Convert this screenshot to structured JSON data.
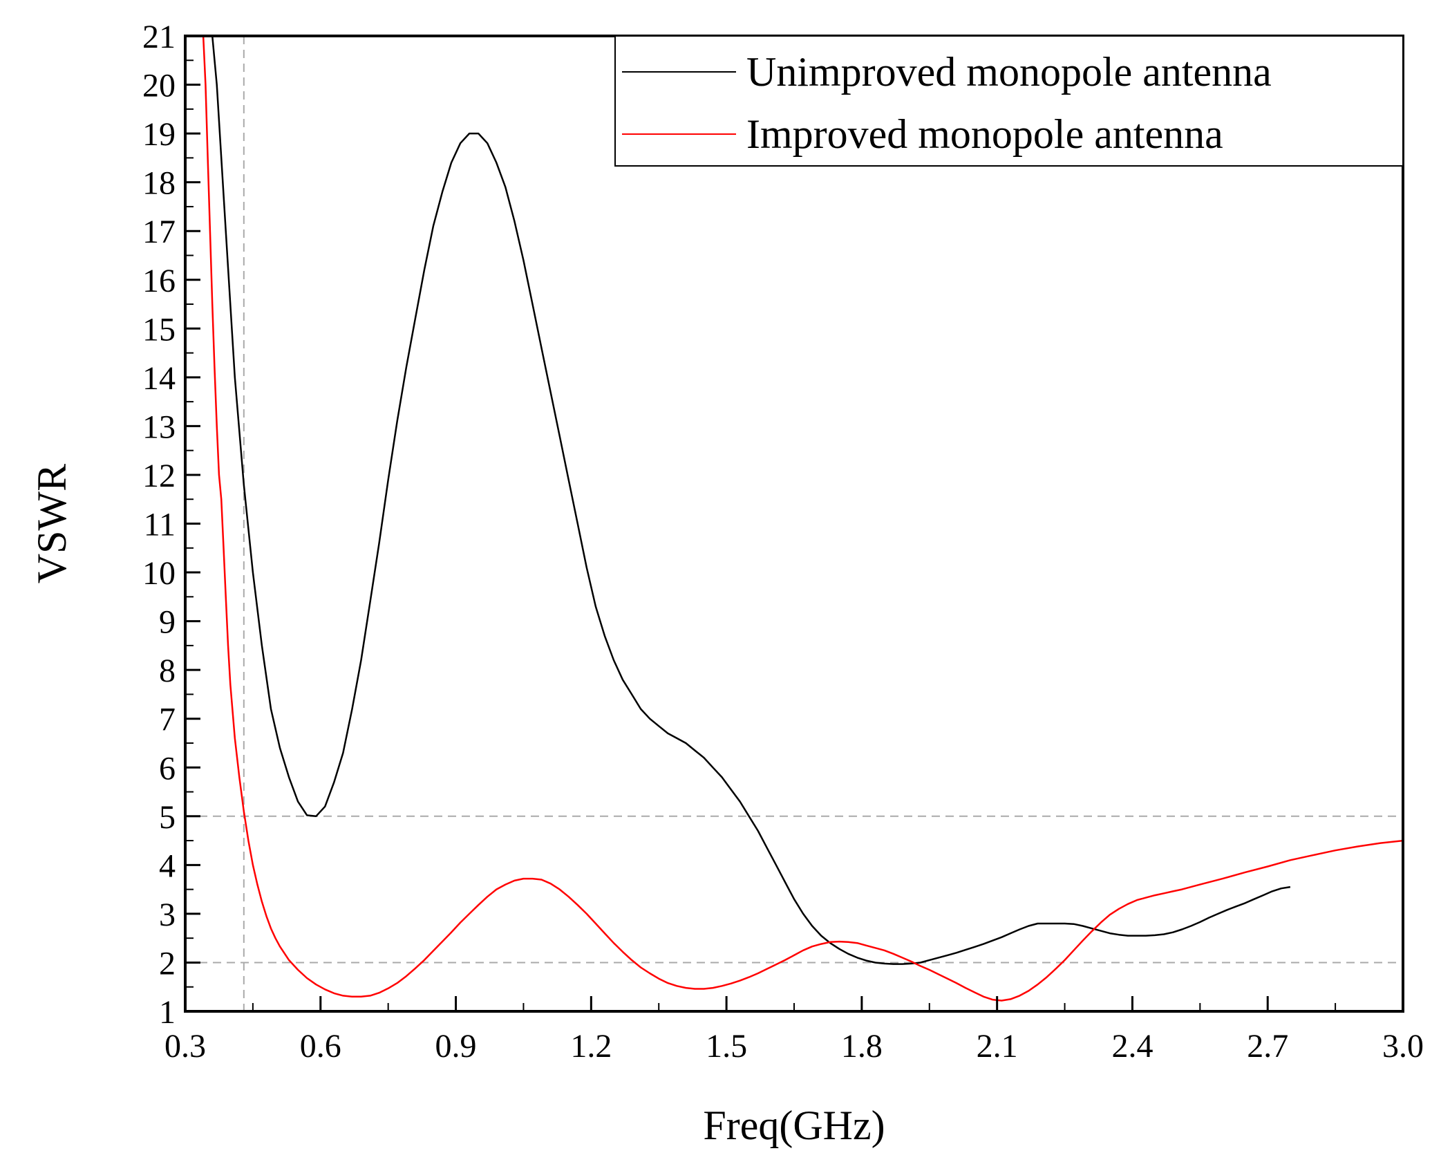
{
  "chart_data": {
    "type": "line",
    "xlabel": "Freq(GHz)",
    "ylabel": "VSWR",
    "xlim": [
      0.3,
      3.0
    ],
    "ylim": [
      1,
      21
    ],
    "x_ticks": [
      "0.3",
      "0.6",
      "0.9",
      "1.2",
      "1.5",
      "1.8",
      "2.1",
      "2.4",
      "2.7",
      "3.0"
    ],
    "y_ticks": [
      "1",
      "2",
      "3",
      "4",
      "5",
      "6",
      "7",
      "8",
      "9",
      "10",
      "11",
      "12",
      "13",
      "14",
      "15",
      "16",
      "17",
      "18",
      "19",
      "20",
      "21"
    ],
    "x_tick_values": [
      0.3,
      0.6,
      0.9,
      1.2,
      1.5,
      1.8,
      2.1,
      2.4,
      2.7,
      3.0
    ],
    "y_tick_values": [
      1,
      2,
      3,
      4,
      5,
      6,
      7,
      8,
      9,
      10,
      11,
      12,
      13,
      14,
      15,
      16,
      17,
      18,
      19,
      20,
      21
    ],
    "grid": false,
    "reference_lines": {
      "horizontal": [
        5,
        2
      ],
      "vertical": [
        0.43
      ],
      "style": "dashed",
      "color": "#aaaaaa"
    },
    "legend_position": "top-right",
    "series": [
      {
        "name": "Unimproved monopole antenna",
        "color": "#000000",
        "points": [
          [
            0.36,
            21
          ],
          [
            0.37,
            20
          ],
          [
            0.39,
            17
          ],
          [
            0.41,
            14
          ],
          [
            0.43,
            11.8
          ],
          [
            0.45,
            10
          ],
          [
            0.47,
            8.5
          ],
          [
            0.49,
            7.2
          ],
          [
            0.51,
            6.4
          ],
          [
            0.53,
            5.8
          ],
          [
            0.55,
            5.3
          ],
          [
            0.57,
            5.02
          ],
          [
            0.59,
            5.0
          ],
          [
            0.61,
            5.2
          ],
          [
            0.63,
            5.7
          ],
          [
            0.65,
            6.3
          ],
          [
            0.67,
            7.2
          ],
          [
            0.69,
            8.2
          ],
          [
            0.71,
            9.4
          ],
          [
            0.73,
            10.6
          ],
          [
            0.75,
            11.9
          ],
          [
            0.77,
            13.1
          ],
          [
            0.79,
            14.2
          ],
          [
            0.81,
            15.2
          ],
          [
            0.83,
            16.2
          ],
          [
            0.85,
            17.1
          ],
          [
            0.87,
            17.8
          ],
          [
            0.89,
            18.4
          ],
          [
            0.91,
            18.8
          ],
          [
            0.93,
            19.0
          ],
          [
            0.95,
            19.0
          ],
          [
            0.97,
            18.8
          ],
          [
            0.99,
            18.4
          ],
          [
            1.01,
            17.9
          ],
          [
            1.03,
            17.2
          ],
          [
            1.05,
            16.4
          ],
          [
            1.07,
            15.5
          ],
          [
            1.09,
            14.6
          ],
          [
            1.11,
            13.7
          ],
          [
            1.13,
            12.8
          ],
          [
            1.15,
            11.9
          ],
          [
            1.17,
            11.0
          ],
          [
            1.19,
            10.1
          ],
          [
            1.21,
            9.3
          ],
          [
            1.23,
            8.7
          ],
          [
            1.25,
            8.2
          ],
          [
            1.27,
            7.8
          ],
          [
            1.29,
            7.5
          ],
          [
            1.31,
            7.2
          ],
          [
            1.33,
            7.0
          ],
          [
            1.35,
            6.85
          ],
          [
            1.37,
            6.7
          ],
          [
            1.39,
            6.6
          ],
          [
            1.41,
            6.5
          ],
          [
            1.43,
            6.35
          ],
          [
            1.45,
            6.2
          ],
          [
            1.47,
            6.0
          ],
          [
            1.49,
            5.8
          ],
          [
            1.51,
            5.55
          ],
          [
            1.53,
            5.3
          ],
          [
            1.55,
            5.0
          ],
          [
            1.57,
            4.7
          ],
          [
            1.59,
            4.35
          ],
          [
            1.61,
            4.0
          ],
          [
            1.63,
            3.65
          ],
          [
            1.65,
            3.3
          ],
          [
            1.67,
            3.0
          ],
          [
            1.69,
            2.75
          ],
          [
            1.71,
            2.55
          ],
          [
            1.73,
            2.4
          ],
          [
            1.75,
            2.28
          ],
          [
            1.77,
            2.18
          ],
          [
            1.79,
            2.1
          ],
          [
            1.81,
            2.04
          ],
          [
            1.83,
            2.0
          ],
          [
            1.85,
            1.98
          ],
          [
            1.87,
            1.97
          ],
          [
            1.89,
            1.97
          ],
          [
            1.91,
            1.98
          ],
          [
            1.93,
            2.0
          ],
          [
            1.95,
            2.05
          ],
          [
            1.97,
            2.1
          ],
          [
            1.99,
            2.15
          ],
          [
            2.01,
            2.2
          ],
          [
            2.03,
            2.26
          ],
          [
            2.05,
            2.32
          ],
          [
            2.07,
            2.38
          ],
          [
            2.09,
            2.45
          ],
          [
            2.11,
            2.52
          ],
          [
            2.13,
            2.6
          ],
          [
            2.15,
            2.68
          ],
          [
            2.17,
            2.75
          ],
          [
            2.19,
            2.8
          ],
          [
            2.21,
            2.8
          ],
          [
            2.23,
            2.8
          ],
          [
            2.25,
            2.8
          ],
          [
            2.27,
            2.79
          ],
          [
            2.29,
            2.75
          ],
          [
            2.31,
            2.7
          ],
          [
            2.33,
            2.65
          ],
          [
            2.35,
            2.6
          ],
          [
            2.37,
            2.57
          ],
          [
            2.39,
            2.55
          ],
          [
            2.41,
            2.55
          ],
          [
            2.43,
            2.55
          ],
          [
            2.45,
            2.56
          ],
          [
            2.47,
            2.58
          ],
          [
            2.49,
            2.62
          ],
          [
            2.51,
            2.68
          ],
          [
            2.53,
            2.75
          ],
          [
            2.55,
            2.83
          ],
          [
            2.57,
            2.92
          ],
          [
            2.59,
            3.0
          ],
          [
            2.61,
            3.08
          ],
          [
            2.63,
            3.15
          ],
          [
            2.65,
            3.22
          ],
          [
            2.67,
            3.3
          ],
          [
            2.69,
            3.38
          ],
          [
            2.71,
            3.46
          ],
          [
            2.73,
            3.52
          ],
          [
            2.75,
            3.55
          ]
        ]
      },
      {
        "name": "Improved monopole antenna",
        "color": "#ff0000",
        "points": [
          [
            0.34,
            21
          ],
          [
            0.345,
            20
          ],
          [
            0.35,
            18.5
          ],
          [
            0.355,
            17
          ],
          [
            0.36,
            15.5
          ],
          [
            0.365,
            14.2
          ],
          [
            0.37,
            13
          ],
          [
            0.375,
            12
          ],
          [
            0.38,
            11.5
          ],
          [
            0.385,
            10.5
          ],
          [
            0.39,
            9.5
          ],
          [
            0.395,
            8.5
          ],
          [
            0.4,
            7.7
          ],
          [
            0.41,
            6.6
          ],
          [
            0.42,
            5.8
          ],
          [
            0.43,
            5.1
          ],
          [
            0.44,
            4.5
          ],
          [
            0.45,
            4.0
          ],
          [
            0.46,
            3.6
          ],
          [
            0.47,
            3.25
          ],
          [
            0.48,
            2.95
          ],
          [
            0.49,
            2.7
          ],
          [
            0.5,
            2.5
          ],
          [
            0.51,
            2.33
          ],
          [
            0.53,
            2.05
          ],
          [
            0.55,
            1.85
          ],
          [
            0.57,
            1.68
          ],
          [
            0.59,
            1.55
          ],
          [
            0.61,
            1.45
          ],
          [
            0.63,
            1.37
          ],
          [
            0.65,
            1.32
          ],
          [
            0.67,
            1.3
          ],
          [
            0.69,
            1.3
          ],
          [
            0.71,
            1.32
          ],
          [
            0.73,
            1.38
          ],
          [
            0.75,
            1.47
          ],
          [
            0.77,
            1.58
          ],
          [
            0.79,
            1.72
          ],
          [
            0.81,
            1.88
          ],
          [
            0.83,
            2.05
          ],
          [
            0.85,
            2.24
          ],
          [
            0.87,
            2.43
          ],
          [
            0.89,
            2.62
          ],
          [
            0.91,
            2.82
          ],
          [
            0.93,
            3.0
          ],
          [
            0.95,
            3.18
          ],
          [
            0.97,
            3.35
          ],
          [
            0.99,
            3.5
          ],
          [
            1.01,
            3.6
          ],
          [
            1.03,
            3.68
          ],
          [
            1.05,
            3.72
          ],
          [
            1.07,
            3.72
          ],
          [
            1.09,
            3.7
          ],
          [
            1.11,
            3.62
          ],
          [
            1.13,
            3.5
          ],
          [
            1.15,
            3.35
          ],
          [
            1.17,
            3.18
          ],
          [
            1.19,
            3.0
          ],
          [
            1.21,
            2.8
          ],
          [
            1.23,
            2.6
          ],
          [
            1.25,
            2.4
          ],
          [
            1.27,
            2.22
          ],
          [
            1.29,
            2.05
          ],
          [
            1.31,
            1.9
          ],
          [
            1.33,
            1.78
          ],
          [
            1.35,
            1.67
          ],
          [
            1.37,
            1.58
          ],
          [
            1.39,
            1.52
          ],
          [
            1.41,
            1.48
          ],
          [
            1.43,
            1.46
          ],
          [
            1.45,
            1.46
          ],
          [
            1.47,
            1.48
          ],
          [
            1.49,
            1.52
          ],
          [
            1.51,
            1.57
          ],
          [
            1.53,
            1.63
          ],
          [
            1.55,
            1.7
          ],
          [
            1.57,
            1.78
          ],
          [
            1.59,
            1.87
          ],
          [
            1.61,
            1.96
          ],
          [
            1.63,
            2.05
          ],
          [
            1.65,
            2.15
          ],
          [
            1.67,
            2.25
          ],
          [
            1.69,
            2.33
          ],
          [
            1.71,
            2.38
          ],
          [
            1.73,
            2.42
          ],
          [
            1.75,
            2.43
          ],
          [
            1.77,
            2.42
          ],
          [
            1.79,
            2.4
          ],
          [
            1.81,
            2.35
          ],
          [
            1.83,
            2.3
          ],
          [
            1.85,
            2.25
          ],
          [
            1.87,
            2.18
          ],
          [
            1.89,
            2.1
          ],
          [
            1.91,
            2.02
          ],
          [
            1.93,
            1.93
          ],
          [
            1.95,
            1.85
          ],
          [
            1.97,
            1.76
          ],
          [
            1.99,
            1.67
          ],
          [
            2.01,
            1.58
          ],
          [
            2.03,
            1.48
          ],
          [
            2.05,
            1.39
          ],
          [
            2.07,
            1.3
          ],
          [
            2.09,
            1.24
          ],
          [
            2.11,
            1.22
          ],
          [
            2.13,
            1.25
          ],
          [
            2.15,
            1.32
          ],
          [
            2.17,
            1.42
          ],
          [
            2.19,
            1.55
          ],
          [
            2.21,
            1.7
          ],
          [
            2.23,
            1.87
          ],
          [
            2.25,
            2.05
          ],
          [
            2.27,
            2.25
          ],
          [
            2.29,
            2.45
          ],
          [
            2.31,
            2.64
          ],
          [
            2.33,
            2.82
          ],
          [
            2.35,
            2.98
          ],
          [
            2.37,
            3.1
          ],
          [
            2.39,
            3.2
          ],
          [
            2.41,
            3.28
          ],
          [
            2.43,
            3.33
          ],
          [
            2.45,
            3.38
          ],
          [
            2.47,
            3.42
          ],
          [
            2.49,
            3.46
          ],
          [
            2.51,
            3.5
          ],
          [
            2.55,
            3.6
          ],
          [
            2.6,
            3.72
          ],
          [
            2.65,
            3.85
          ],
          [
            2.7,
            3.97
          ],
          [
            2.75,
            4.1
          ],
          [
            2.8,
            4.2
          ],
          [
            2.85,
            4.3
          ],
          [
            2.9,
            4.38
          ],
          [
            2.95,
            4.45
          ],
          [
            3.0,
            4.5
          ]
        ]
      }
    ]
  }
}
